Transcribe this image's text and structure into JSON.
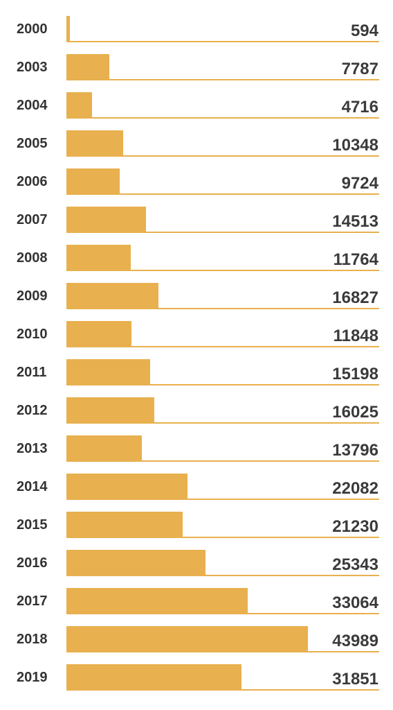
{
  "colors": {
    "bar": "#e8b04e",
    "baseline": "#e8b04e",
    "label": "#333333"
  },
  "chart_data": {
    "type": "bar",
    "orientation": "horizontal",
    "categories": [
      "2000",
      "2003",
      "2004",
      "2005",
      "2006",
      "2007",
      "2008",
      "2009",
      "2010",
      "2011",
      "2012",
      "2013",
      "2014",
      "2015",
      "2016",
      "2017",
      "2018",
      "2019"
    ],
    "values": [
      594,
      7787,
      4716,
      10348,
      9724,
      14513,
      11764,
      16827,
      11848,
      15198,
      16025,
      13796,
      22082,
      21230,
      25343,
      33064,
      43989,
      31851
    ],
    "title": "",
    "xlabel": "",
    "ylabel": "",
    "xlim": [
      0,
      57000
    ],
    "grid": false,
    "legend": "none"
  }
}
